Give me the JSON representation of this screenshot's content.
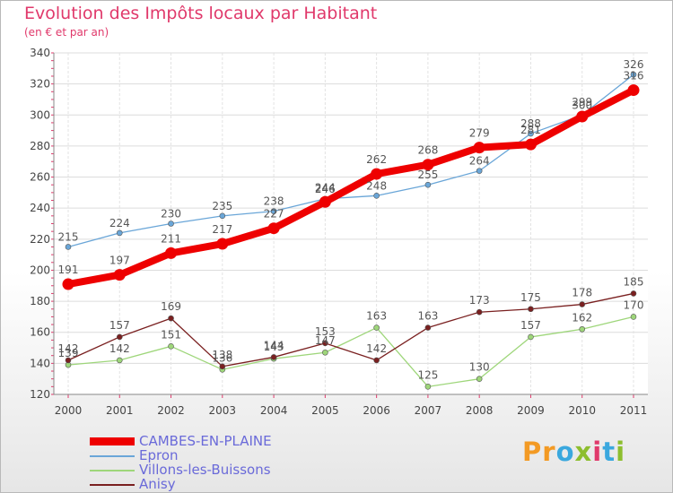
{
  "header": {
    "title": "Evolution des Impôts locaux par Habitant",
    "subtitle": "(en € et par an)"
  },
  "logo": {
    "text": "Proxiti",
    "colors": [
      "#f39a24",
      "#3aa8de",
      "#8dbe2e",
      "#e0396b"
    ]
  },
  "chart_data": {
    "type": "line",
    "title": "Evolution des Impôts locaux par Habitant",
    "subtitle": "(en € et par an)",
    "xlabel": "",
    "ylabel": "",
    "categories": [
      "2000",
      "2001",
      "2002",
      "2003",
      "2004",
      "2005",
      "2006",
      "2007",
      "2008",
      "2009",
      "2010",
      "2011"
    ],
    "ylim": [
      120,
      340
    ],
    "yticks": [
      120,
      140,
      160,
      180,
      200,
      220,
      240,
      260,
      280,
      300,
      320,
      340
    ],
    "grid": true,
    "legend_position": "bottom-left",
    "series": [
      {
        "name": "CAMBES-EN-PLAINE",
        "color": "#ee0000",
        "width": "thick",
        "values": [
          191,
          197,
          211,
          217,
          227,
          244,
          262,
          268,
          279,
          281,
          299,
          316
        ]
      },
      {
        "name": "Epron",
        "color": "#6aa6d8",
        "width": "thin",
        "values": [
          215,
          224,
          230,
          235,
          238,
          246,
          248,
          255,
          264,
          288,
          300,
          326
        ]
      },
      {
        "name": "Villons-les-Buissons",
        "color": "#9ed67a",
        "width": "thin",
        "values": [
          139,
          142,
          151,
          136,
          143,
          147,
          163,
          125,
          130,
          157,
          162,
          170
        ]
      },
      {
        "name": "Anisy",
        "color": "#7a2020",
        "width": "thin",
        "values": [
          142,
          157,
          169,
          138,
          144,
          153,
          142,
          163,
          173,
          175,
          178,
          185
        ]
      }
    ]
  }
}
